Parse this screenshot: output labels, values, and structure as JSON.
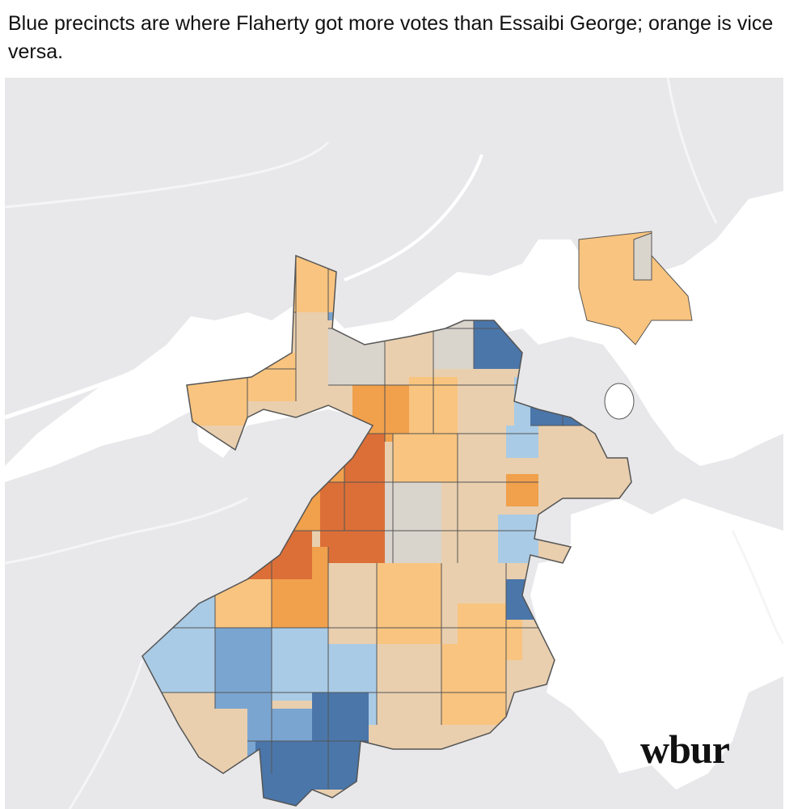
{
  "header": {
    "title": "Blue precincts are where Flaherty got more votes than Essaibi George; orange is vice versa."
  },
  "brand": {
    "logo_text": "wbur"
  },
  "colors": {
    "land": "#e8e8ea",
    "water": "#ffffff",
    "road": "#f5f5f7",
    "blue_dark": "#4a76aa",
    "blue_mid": "#7aa5d1",
    "blue_light": "#a9cbe6",
    "neutral": "#d9d4cc",
    "tan": "#e9cfae",
    "orange_light": "#f9c47f",
    "orange_mid": "#f1a04b",
    "orange_dark": "#dc6f37",
    "border": "#555555"
  }
}
